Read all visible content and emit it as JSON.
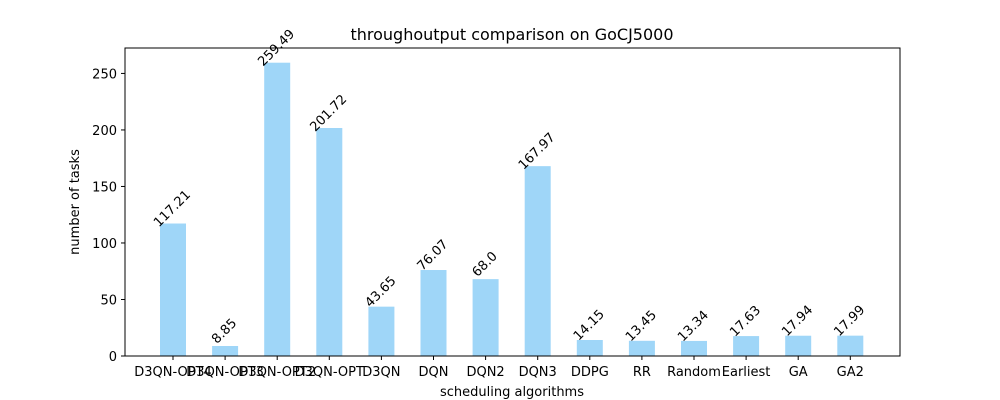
{
  "chart_data": {
    "type": "bar",
    "title": "throughoutput comparison on GoCJ5000",
    "xlabel": "scheduling algorithms",
    "ylabel": "number of tasks",
    "categories": [
      "D3QN-OPT4",
      "D3QN-OPT3",
      "D3QN-OPT2",
      "D3QN-OPT",
      "D3QN",
      "DQN",
      "DQN2",
      "DQN3",
      "DDPG",
      "RR",
      "Random",
      "Earliest",
      "GA",
      "GA2"
    ],
    "values": [
      117.21,
      8.85,
      259.49,
      201.72,
      43.65,
      76.07,
      68.0,
      167.97,
      14.15,
      13.45,
      13.34,
      17.63,
      17.94,
      17.99
    ],
    "value_labels": [
      "117.21",
      "8.85",
      "259.49",
      "201.72",
      "43.65",
      "76.07",
      "68.0",
      "167.97",
      "14.15",
      "13.45",
      "13.34",
      "17.63",
      "17.94",
      "17.99"
    ],
    "ylim": [
      0,
      272.5
    ],
    "yticks": [
      0,
      50,
      100,
      150,
      200,
      250
    ],
    "grid": false,
    "bar_color": "#9fd6f8"
  }
}
